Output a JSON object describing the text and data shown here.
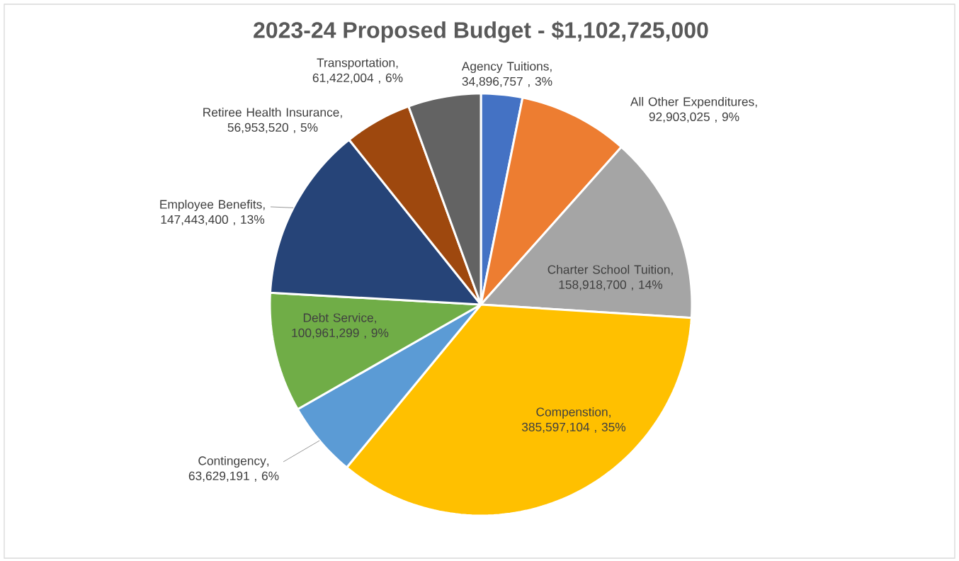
{
  "chart_data": {
    "type": "pie",
    "title": "2023-24 Proposed Budget - $1,102,725,000",
    "categories": [
      "Agency Tuitions",
      "All Other Expenditures",
      "Charter School Tuition",
      "Compenstion",
      "Contingency",
      "Debt Service",
      "Employee Benefits",
      "Retiree Health Insurance",
      "Transportation"
    ],
    "values": [
      34896757,
      92903025,
      158918700,
      385597104,
      63629191,
      100961299,
      147443400,
      56953520,
      61422004
    ],
    "value_labels": [
      ", 34,896,757 , 3%",
      ", 92,903,025 , 9%",
      ", 158,918,700 , 14%",
      ", 385,597,104 , 35%",
      ", 63,629,191 , 6%",
      ", 100,961,299 , 9%",
      ", 147,443,400 , 13%",
      ", 56,953,520 , 5%",
      ", 61,422,004 , 6%"
    ],
    "colors": [
      "#4472c4",
      "#ed7d31",
      "#a5a5a5",
      "#ffc000",
      "#5b9bd5",
      "#70ad47",
      "#264478",
      "#9e480e",
      "#636363"
    ]
  }
}
